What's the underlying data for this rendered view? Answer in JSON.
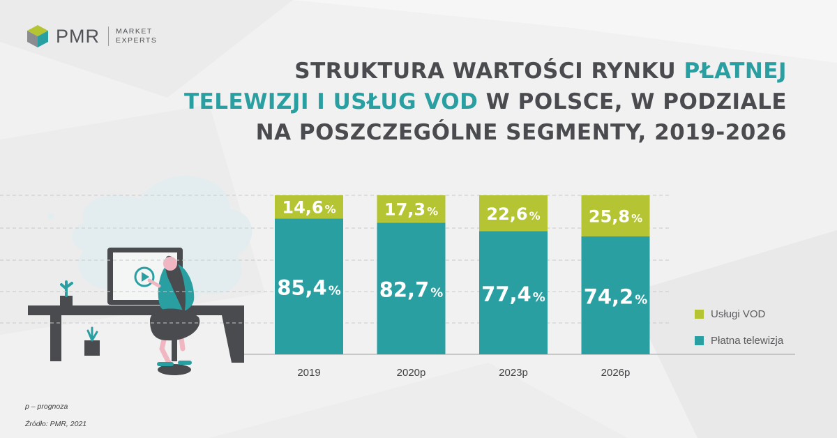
{
  "brand": {
    "name": "PMR",
    "tagline_line1": "MARKET",
    "tagline_line2": "EXPERTS"
  },
  "title": {
    "part1": "STRUKTURA WARTOŚCI RYNKU ",
    "part2_highlight": "PŁATNEJ",
    "part3_highlight": "TELEWIZJI I USŁUG VOD",
    "part4": " W POLSCE, W PODZIALE",
    "part5": "NA POSZCZEGÓLNE SEGMENTY, 2019-2026"
  },
  "colors": {
    "vod": "#b5c432",
    "paytv": "#2a9fa2",
    "title_highlight": "#2a9fa2",
    "title_text": "#4a4b4e"
  },
  "chart_data": {
    "type": "bar",
    "stacked": true,
    "normalized_percent": true,
    "categories": [
      "2019",
      "2020p",
      "2023p",
      "2026p"
    ],
    "series": [
      {
        "name": "Płatna telewizja",
        "values": [
          85.4,
          82.7,
          77.4,
          74.2
        ],
        "labels": [
          "85,4",
          "82,7",
          "77,4",
          "74,2"
        ],
        "color": "#2a9fa2"
      },
      {
        "name": "Usługi VOD",
        "values": [
          14.6,
          17.3,
          22.6,
          25.8
        ],
        "labels": [
          "14,6",
          "17,3",
          "22,6",
          "25,8"
        ],
        "color": "#b5c432"
      }
    ],
    "unit_suffix": "%",
    "ylim": [
      0,
      100
    ],
    "legend_position": "right",
    "grid": true
  },
  "legend": {
    "vod": "Usługi VOD",
    "paytv": "Płatna telewizja"
  },
  "footnotes": {
    "forecast": "p – prognoza",
    "source": "Źródło: PMR, 2021"
  }
}
